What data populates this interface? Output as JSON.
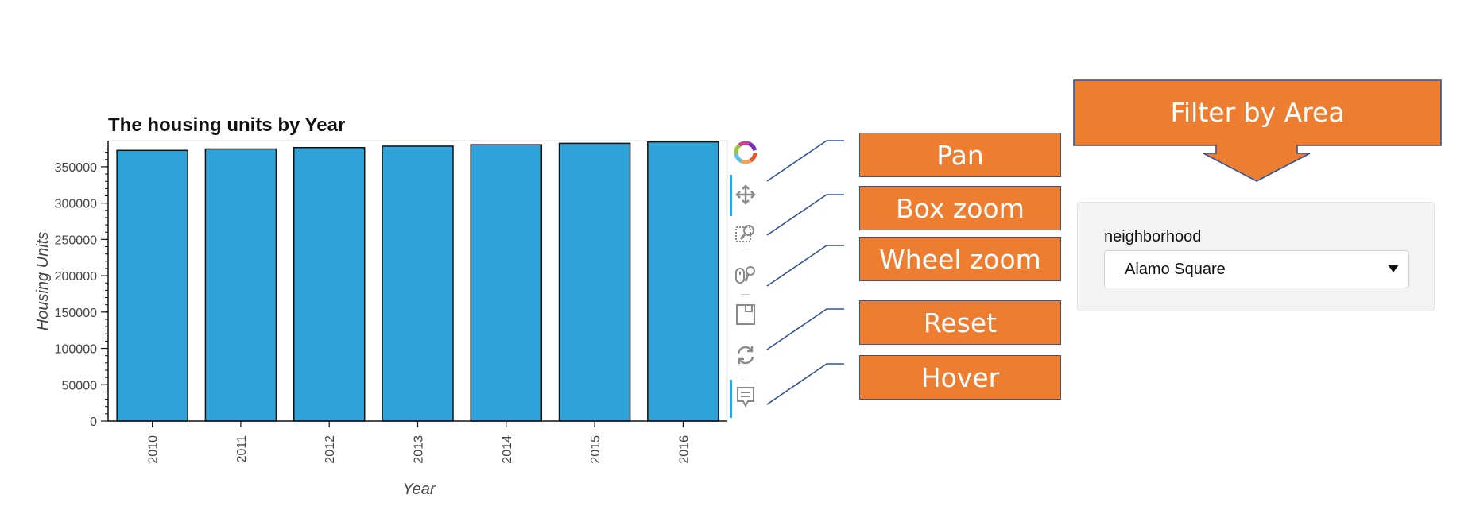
{
  "chart_data": {
    "type": "bar",
    "title": "The housing units by Year",
    "xlabel": "Year",
    "ylabel": "Housing Units",
    "categories": [
      "2010",
      "2011",
      "2012",
      "2013",
      "2014",
      "2015",
      "2016"
    ],
    "values": [
      372560,
      374507,
      376454,
      378401,
      380348,
      382295,
      384242
    ],
    "ylim": [
      0,
      386000
    ],
    "yticks": [
      0,
      50000,
      100000,
      150000,
      200000,
      250000,
      300000,
      350000
    ],
    "bar_color": "#30a2da",
    "grid": false
  },
  "toolbar": {
    "logo_icon": "bokeh-logo-icon",
    "tools": [
      "pan-icon",
      "box-zoom-icon",
      "wheel-zoom-icon",
      "save-icon",
      "reset-icon",
      "hover-icon"
    ]
  },
  "callouts": {
    "pan": "Pan",
    "box_zoom": "Box zoom",
    "wheel_zoom": "Wheel zoom",
    "reset": "Reset",
    "hover": "Hover",
    "filter": "Filter by Area"
  },
  "filter": {
    "label": "neighborhood",
    "selected": "Alamo Square"
  },
  "colors": {
    "callout_fill": "#ed7d31",
    "callout_border": "#2f5597"
  }
}
